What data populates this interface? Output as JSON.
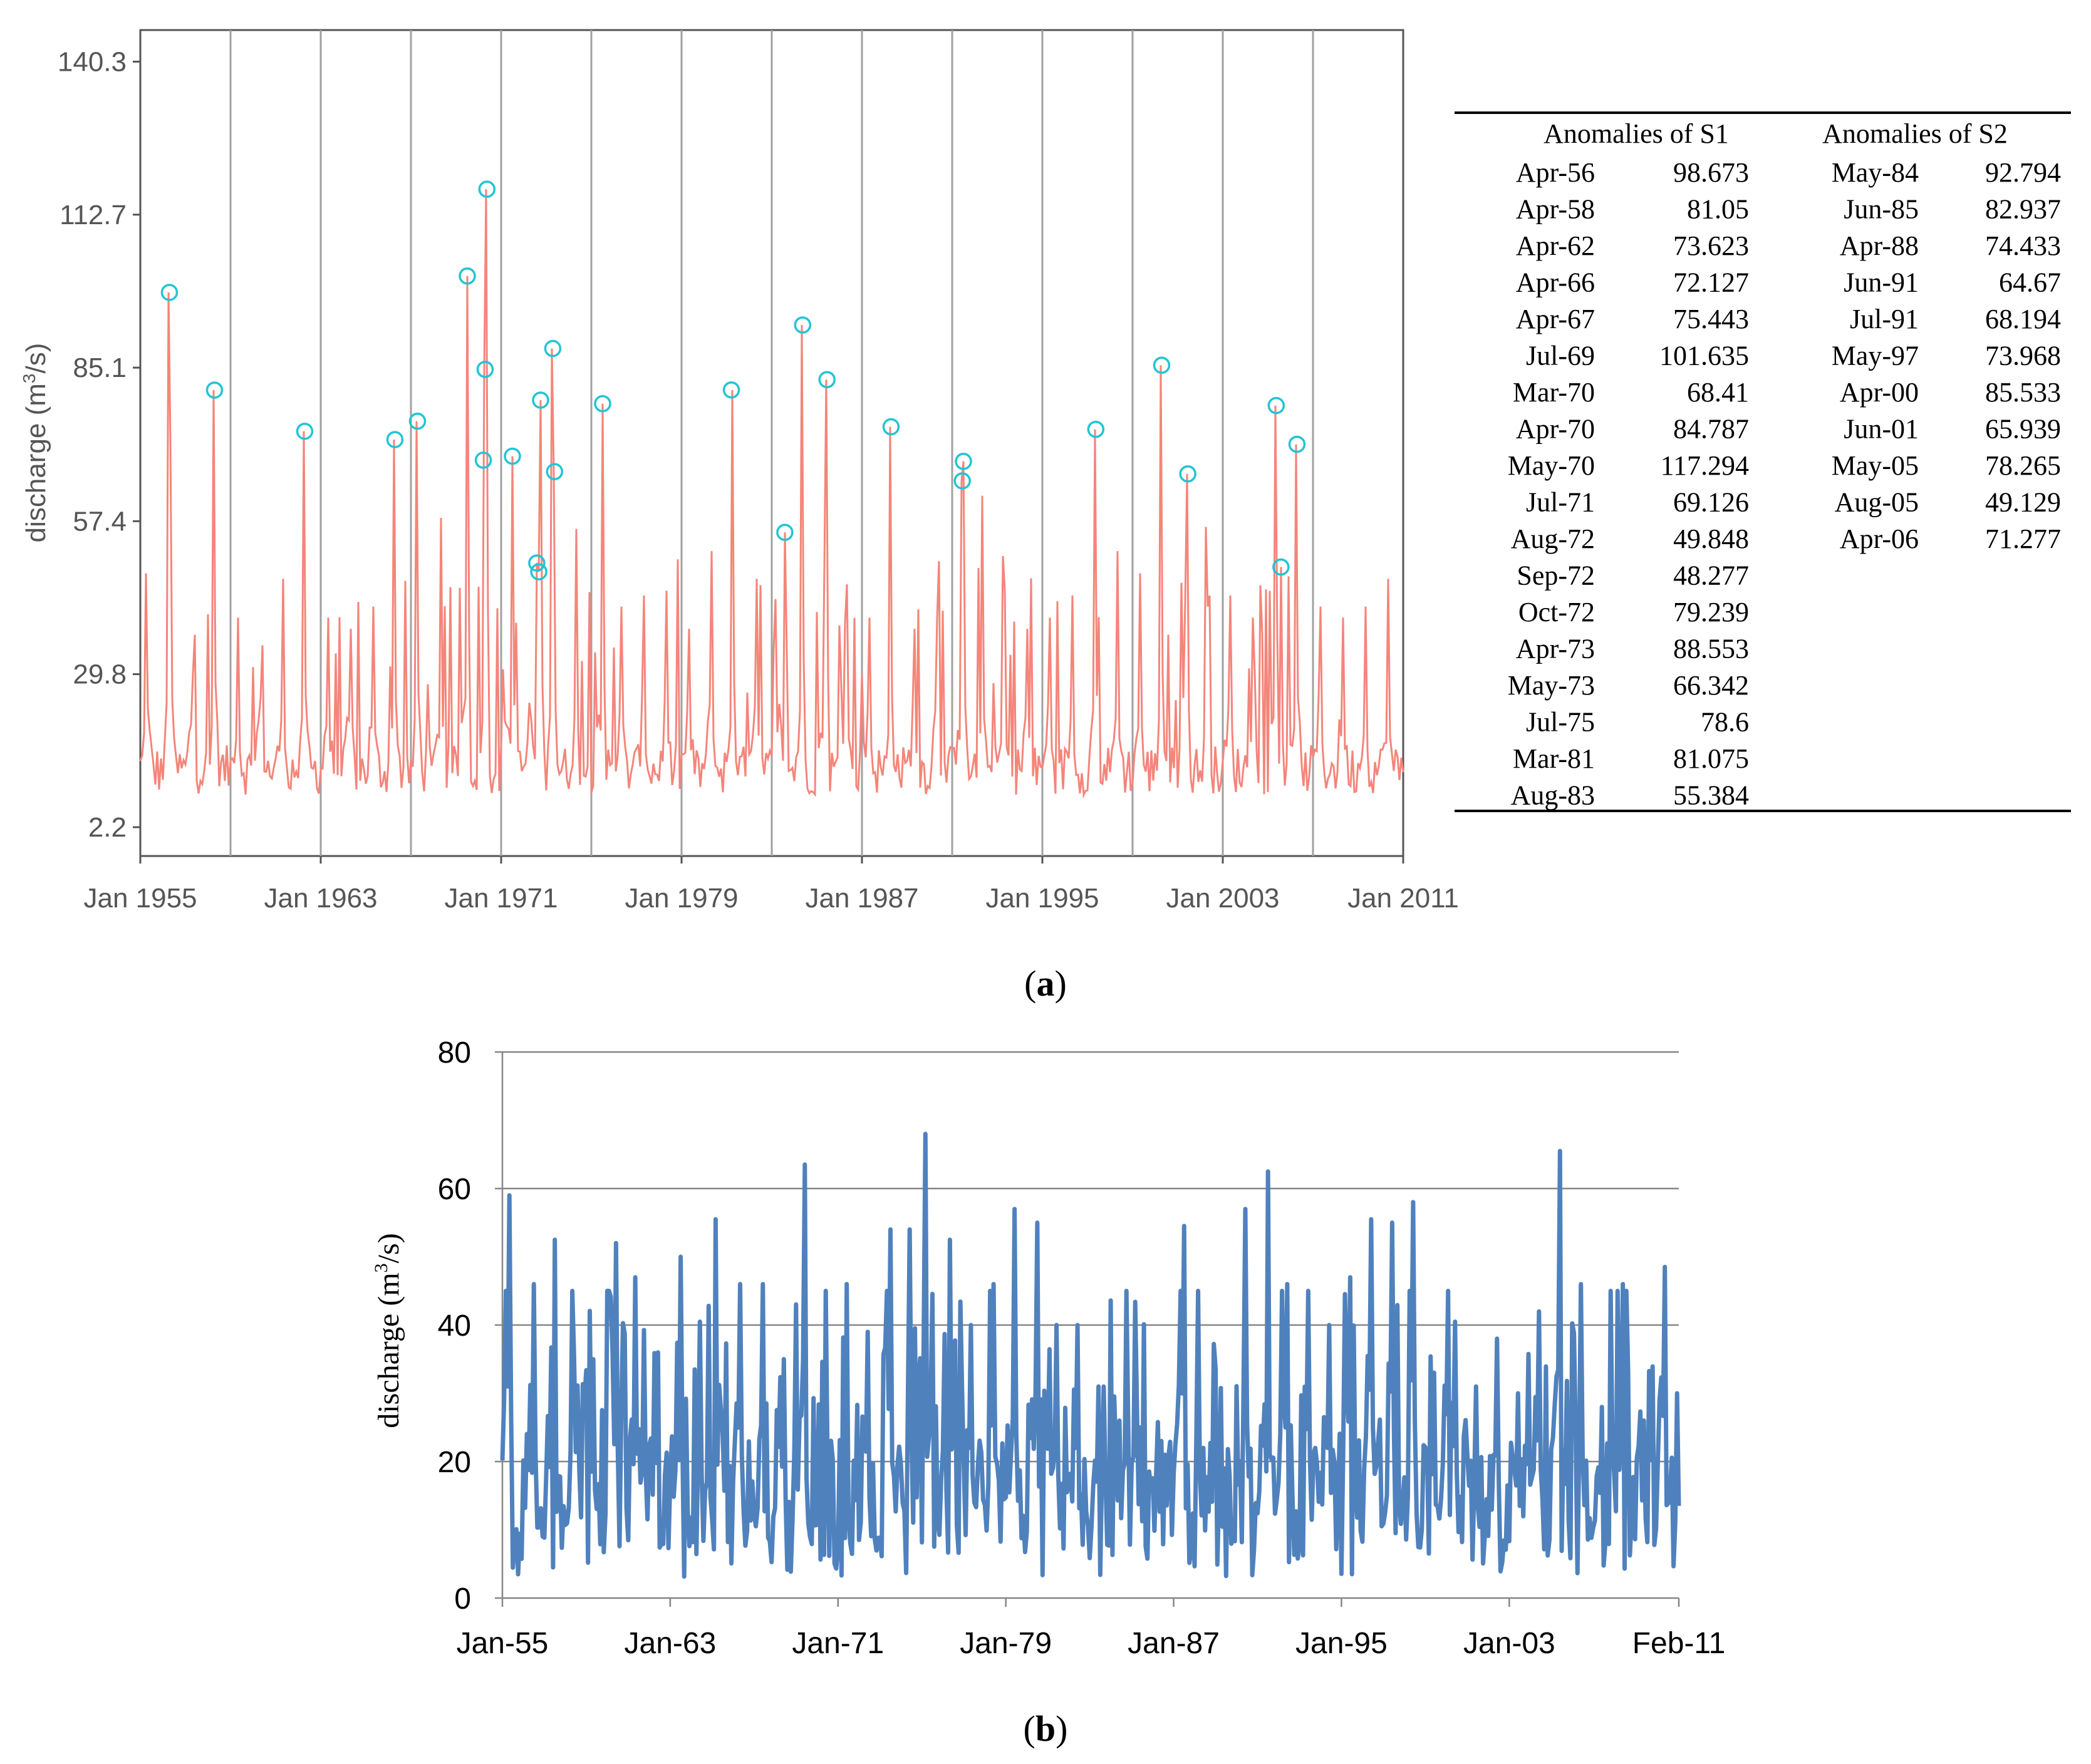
{
  "chart_data": [
    {
      "type": "line",
      "id": "a",
      "caption": "(a)",
      "caption_letter": "a",
      "ylabel": "discharge (m³/s)",
      "ylabel_main": "discharge (m",
      "ylabel_sup": "3",
      "ylabel_tail": "/s)",
      "xlim": [
        1955.0,
        2011.0
      ],
      "ylim": [
        -3.0,
        146.0
      ],
      "y_ticks": [
        2.2,
        29.8,
        57.4,
        85.1,
        112.7,
        140.3
      ],
      "y_tick_labels": [
        "2.2",
        "29.8",
        "57.4",
        "85.1",
        "112.7",
        "140.3"
      ],
      "x_ticks": [
        1955,
        1963,
        1971,
        1979,
        1987,
        1995,
        2003,
        2011
      ],
      "x_tick_labels": [
        "Jan 1955",
        "Jan 1963",
        "Jan 1971",
        "Jan 1979",
        "Jan 1987",
        "Jan 1995",
        "Jan 2003",
        "Jan 2011"
      ],
      "vertical_gridlines": [
        1959,
        1963,
        1967,
        1971,
        1975,
        1979,
        1983,
        1987,
        1991,
        1995,
        1999,
        2003,
        2007
      ],
      "line_color": "#f4857a",
      "marker_color": "#22c4d4",
      "anomalies": [
        {
          "x": 1956.29,
          "y": 98.673
        },
        {
          "x": 1958.29,
          "y": 81.05
        },
        {
          "x": 1962.29,
          "y": 73.623
        },
        {
          "x": 1966.29,
          "y": 72.127
        },
        {
          "x": 1967.29,
          "y": 75.443
        },
        {
          "x": 1969.5,
          "y": 101.635
        },
        {
          "x": 1970.21,
          "y": 68.41
        },
        {
          "x": 1970.29,
          "y": 84.787
        },
        {
          "x": 1970.37,
          "y": 117.294
        },
        {
          "x": 1971.5,
          "y": 69.126
        },
        {
          "x": 1972.58,
          "y": 49.848
        },
        {
          "x": 1972.67,
          "y": 48.277
        },
        {
          "x": 1972.75,
          "y": 79.239
        },
        {
          "x": 1973.29,
          "y": 88.553
        },
        {
          "x": 1973.37,
          "y": 66.342
        },
        {
          "x": 1975.5,
          "y": 78.6
        },
        {
          "x": 1981.21,
          "y": 81.075
        },
        {
          "x": 1983.58,
          "y": 55.384
        },
        {
          "x": 1984.37,
          "y": 92.794
        },
        {
          "x": 1985.45,
          "y": 82.937
        },
        {
          "x": 1988.29,
          "y": 74.433
        },
        {
          "x": 1991.45,
          "y": 64.67
        },
        {
          "x": 1991.5,
          "y": 68.194
        },
        {
          "x": 1997.37,
          "y": 73.968
        },
        {
          "x": 2000.29,
          "y": 85.533
        },
        {
          "x": 2001.45,
          "y": 65.939
        },
        {
          "x": 2005.37,
          "y": 78.265
        },
        {
          "x": 2005.58,
          "y": 49.129
        },
        {
          "x": 2006.29,
          "y": 71.277
        }
      ],
      "baseline_peaks": [
        {
          "x": 1955.21,
          "y": 48
        },
        {
          "x": 1956.33,
          "y": 72
        },
        {
          "x": 1957.3,
          "y": 30
        },
        {
          "x": 1959.3,
          "y": 40
        },
        {
          "x": 1960.4,
          "y": 35
        },
        {
          "x": 1961.3,
          "y": 47
        },
        {
          "x": 1963.3,
          "y": 40
        },
        {
          "x": 1964.3,
          "y": 38
        },
        {
          "x": 1965.3,
          "y": 42
        },
        {
          "x": 1968.3,
          "y": 58
        },
        {
          "x": 1974.3,
          "y": 56
        },
        {
          "x": 1976.3,
          "y": 42
        },
        {
          "x": 1977.3,
          "y": 44
        },
        {
          "x": 1978.3,
          "y": 42
        },
        {
          "x": 1979.3,
          "y": 38
        },
        {
          "x": 1980.3,
          "y": 52
        },
        {
          "x": 1982.3,
          "y": 47
        },
        {
          "x": 1986.3,
          "y": 46
        },
        {
          "x": 1987.3,
          "y": 40
        },
        {
          "x": 1989.3,
          "y": 38
        },
        {
          "x": 1990.3,
          "y": 40
        },
        {
          "x": 1992.3,
          "y": 62
        },
        {
          "x": 1993.3,
          "y": 45
        },
        {
          "x": 1994.3,
          "y": 38
        },
        {
          "x": 1995.3,
          "y": 40
        },
        {
          "x": 1996.3,
          "y": 44
        },
        {
          "x": 1998.3,
          "y": 52
        },
        {
          "x": 1999.3,
          "y": 48
        },
        {
          "x": 2002.3,
          "y": 42
        },
        {
          "x": 2003.3,
          "y": 44
        },
        {
          "x": 2004.3,
          "y": 40
        },
        {
          "x": 2007.3,
          "y": 42
        },
        {
          "x": 2008.3,
          "y": 40
        },
        {
          "x": 2009.3,
          "y": 42
        },
        {
          "x": 2010.3,
          "y": 47
        }
      ]
    },
    {
      "type": "line",
      "id": "b",
      "caption": "(b)",
      "caption_letter": "b",
      "ylabel": "discharge (m³/s)",
      "ylabel_main": "discharge (m",
      "ylabel_sup": "3",
      "ylabel_tail": "/s)",
      "xlim": [
        1955.0,
        2011.083
      ],
      "ylim": [
        0,
        80
      ],
      "y_ticks": [
        0,
        20,
        40,
        60,
        80
      ],
      "y_tick_labels": [
        "0",
        "20",
        "40",
        "60",
        "80"
      ],
      "x_ticks": [
        1955,
        1963,
        1971,
        1979,
        1987,
        1995,
        2003,
        2011.083
      ],
      "x_tick_labels": [
        "Jan-55",
        "Jan-63",
        "Jan-71",
        "Jan-79",
        "Jan-87",
        "Jan-95",
        "Jan-03",
        "Feb-11"
      ],
      "line_color": "#4f81bd",
      "peaks": [
        {
          "x": 1955.33,
          "y": 59
        },
        {
          "x": 1956.5,
          "y": 46
        },
        {
          "x": 1957.5,
          "y": 52.5
        },
        {
          "x": 1959.3,
          "y": 35
        },
        {
          "x": 1960.4,
          "y": 52
        },
        {
          "x": 1961.3,
          "y": 47
        },
        {
          "x": 1962.4,
          "y": 36
        },
        {
          "x": 1963.5,
          "y": 50
        },
        {
          "x": 1964.4,
          "y": 40.5
        },
        {
          "x": 1965.2,
          "y": 55.5
        },
        {
          "x": 1966.3,
          "y": 46
        },
        {
          "x": 1967.4,
          "y": 46
        },
        {
          "x": 1968.4,
          "y": 35
        },
        {
          "x": 1969.4,
          "y": 63.5
        },
        {
          "x": 1970.4,
          "y": 45
        },
        {
          "x": 1971.4,
          "y": 46
        },
        {
          "x": 1972.4,
          "y": 39
        },
        {
          "x": 1973.5,
          "y": 54
        },
        {
          "x": 1974.4,
          "y": 54
        },
        {
          "x": 1975.2,
          "y": 68
        },
        {
          "x": 1976.3,
          "y": 52.5
        },
        {
          "x": 1977.3,
          "y": 40
        },
        {
          "x": 1978.4,
          "y": 46
        },
        {
          "x": 1979.4,
          "y": 57
        },
        {
          "x": 1980.5,
          "y": 55
        },
        {
          "x": 1981.4,
          "y": 40
        },
        {
          "x": 1982.4,
          "y": 40
        },
        {
          "x": 1983.4,
          "y": 31
        },
        {
          "x": 1984.4,
          "y": 26
        },
        {
          "x": 1985.4,
          "y": 25
        },
        {
          "x": 1986.4,
          "y": 23
        },
        {
          "x": 1987.5,
          "y": 54.5
        },
        {
          "x": 1988.4,
          "y": 22
        },
        {
          "x": 1989.4,
          "y": 19
        },
        {
          "x": 1990.4,
          "y": 57
        },
        {
          "x": 1991.5,
          "y": 62.5
        },
        {
          "x": 1992.4,
          "y": 46
        },
        {
          "x": 1993.4,
          "y": 45
        },
        {
          "x": 1994.4,
          "y": 40
        },
        {
          "x": 1995.4,
          "y": 47
        },
        {
          "x": 1996.4,
          "y": 55.5
        },
        {
          "x": 1997.4,
          "y": 55
        },
        {
          "x": 1998.4,
          "y": 58
        },
        {
          "x": 1999.4,
          "y": 33
        },
        {
          "x": 2000.4,
          "y": 40.5
        },
        {
          "x": 2001.4,
          "y": 31
        },
        {
          "x": 2002.4,
          "y": 38
        },
        {
          "x": 2003.4,
          "y": 30
        },
        {
          "x": 2004.4,
          "y": 42
        },
        {
          "x": 2005.4,
          "y": 65.5
        },
        {
          "x": 2006.4,
          "y": 46
        },
        {
          "x": 2007.4,
          "y": 28
        },
        {
          "x": 2008.4,
          "y": 46
        },
        {
          "x": 2009.4,
          "y": 26
        },
        {
          "x": 2010.4,
          "y": 48.5
        },
        {
          "x": 2011.0,
          "y": 30
        }
      ]
    }
  ],
  "table": {
    "header_s1": "Anomalies of S1",
    "header_s2": "Anomalies of S2",
    "s1": [
      {
        "date": "Apr-56",
        "value": "98.673"
      },
      {
        "date": "Apr-58",
        "value": "81.05"
      },
      {
        "date": "Apr-62",
        "value": "73.623"
      },
      {
        "date": "Apr-66",
        "value": "72.127"
      },
      {
        "date": "Apr-67",
        "value": "75.443"
      },
      {
        "date": "Jul-69",
        "value": "101.635"
      },
      {
        "date": "Mar-70",
        "value": "68.41"
      },
      {
        "date": "Apr-70",
        "value": "84.787"
      },
      {
        "date": "May-70",
        "value": "117.294"
      },
      {
        "date": "Jul-71",
        "value": "69.126"
      },
      {
        "date": "Aug-72",
        "value": "49.848"
      },
      {
        "date": "Sep-72",
        "value": "48.277"
      },
      {
        "date": "Oct-72",
        "value": "79.239"
      },
      {
        "date": "Apr-73",
        "value": "88.553"
      },
      {
        "date": "May-73",
        "value": "66.342"
      },
      {
        "date": "Jul-75",
        "value": "78.6"
      },
      {
        "date": "Mar-81",
        "value": "81.075"
      },
      {
        "date": "Aug-83",
        "value": "55.384"
      }
    ],
    "s2": [
      {
        "date": "May-84",
        "value": "92.794"
      },
      {
        "date": "Jun-85",
        "value": "82.937"
      },
      {
        "date": "Apr-88",
        "value": "74.433"
      },
      {
        "date": "Jun-91",
        "value": "64.67"
      },
      {
        "date": "Jul-91",
        "value": "68.194"
      },
      {
        "date": "May-97",
        "value": "73.968"
      },
      {
        "date": "Apr-00",
        "value": "85.533"
      },
      {
        "date": "Jun-01",
        "value": "65.939"
      },
      {
        "date": "May-05",
        "value": "78.265"
      },
      {
        "date": "Aug-05",
        "value": "49.129"
      },
      {
        "date": "Apr-06",
        "value": "71.277"
      }
    ]
  }
}
